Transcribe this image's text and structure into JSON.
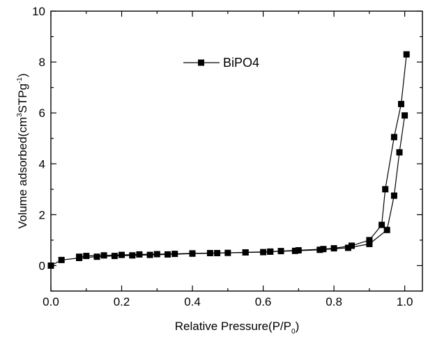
{
  "chart_data": {
    "type": "line",
    "xlabel": {
      "main": "Relative Pressure(P/P",
      "sub": "0",
      "tail": ")"
    },
    "ylabel": {
      "main": "Volume adsorbed(cm",
      "sup1": "3",
      "mid": "STPg",
      "sup2": "-1",
      "tail": ")"
    },
    "xlim": [
      0.0,
      1.05
    ],
    "ylim": [
      -1,
      10
    ],
    "xticks": [
      0.0,
      0.2,
      0.4,
      0.6,
      0.8,
      1.0
    ],
    "xtick_labels": [
      "0.0",
      "0.2",
      "0.4",
      "0.6",
      "0.8",
      "1.0"
    ],
    "yticks": [
      0,
      2,
      4,
      6,
      8,
      10
    ],
    "ytick_labels": [
      "0",
      "2",
      "4",
      "6",
      "8",
      "10"
    ],
    "legend": {
      "label": "BiPO4",
      "placement": "top-center"
    },
    "marker": "square",
    "color": "#000000",
    "series": [
      {
        "name": "BiPO4",
        "branch": "adsorption",
        "x": [
          0.0,
          0.03,
          0.08,
          0.13,
          0.18,
          0.23,
          0.28,
          0.33,
          0.4,
          0.47,
          0.55,
          0.62,
          0.69,
          0.76,
          0.84,
          0.9,
          0.95,
          0.97,
          0.985,
          1.0
        ],
        "y": [
          0.0,
          0.22,
          0.3,
          0.35,
          0.38,
          0.4,
          0.42,
          0.44,
          0.47,
          0.49,
          0.52,
          0.55,
          0.58,
          0.62,
          0.7,
          0.85,
          1.4,
          2.75,
          4.45,
          5.9
        ]
      },
      {
        "name": "BiPO4",
        "branch": "desorption",
        "x": [
          1.005,
          0.99,
          0.97,
          0.945,
          0.935,
          0.9,
          0.85,
          0.8,
          0.77,
          0.7,
          0.65,
          0.62,
          0.6,
          0.55,
          0.5,
          0.45,
          0.4,
          0.35,
          0.3,
          0.25,
          0.2,
          0.15,
          0.1,
          0.08
        ],
        "y": [
          8.3,
          6.35,
          5.05,
          3.0,
          1.6,
          1.0,
          0.78,
          0.68,
          0.65,
          0.6,
          0.57,
          0.55,
          0.53,
          0.52,
          0.5,
          0.49,
          0.48,
          0.46,
          0.45,
          0.44,
          0.42,
          0.4,
          0.38,
          0.35
        ]
      }
    ]
  }
}
